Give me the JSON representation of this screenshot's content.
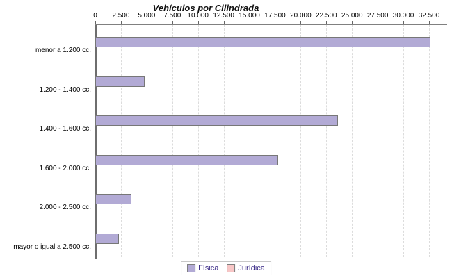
{
  "chart_data": {
    "type": "bar",
    "orientation": "horizontal",
    "title": "Vehículos por Cilindrada",
    "categories": [
      "menor a 1.200 cc.",
      "1.200 - 1.400 cc.",
      "1.400 - 1.600 cc.",
      "1.600 - 2.000 cc.",
      "2.000 - 2.500 cc.",
      "mayor o igual a 2.500 cc."
    ],
    "series": [
      {
        "name": "Física",
        "color": "#b2aad5",
        "values": [
          32500,
          4700,
          23500,
          17700,
          3400,
          2200
        ]
      },
      {
        "name": "Jurídica",
        "color": "#f8c6c6",
        "values": [
          0,
          0,
          0,
          0,
          0,
          0
        ]
      }
    ],
    "x_tick_labels": [
      "0",
      "2.500",
      "5.000",
      "7.500",
      "10.000",
      "12.500",
      "15.000",
      "17.500",
      "20.000",
      "22.500",
      "25.000",
      "27.500",
      "30.000",
      "32.500"
    ],
    "x_tick_values": [
      0,
      2500,
      5000,
      7500,
      10000,
      12500,
      15000,
      17500,
      20000,
      22500,
      25000,
      27500,
      30000,
      32500
    ],
    "xlim": [
      0,
      34260
    ],
    "grid": "vertical-dashed",
    "legend_position": "bottom-center",
    "colors": {
      "bar_fill": "#b2aad5",
      "bar_border": "#777777",
      "juridica_fill": "#f8c6c6",
      "axis_line": "#808080",
      "gridline": "#dcdcdc",
      "legend_text": "#3b2b87",
      "tick_text": "#000000"
    }
  }
}
